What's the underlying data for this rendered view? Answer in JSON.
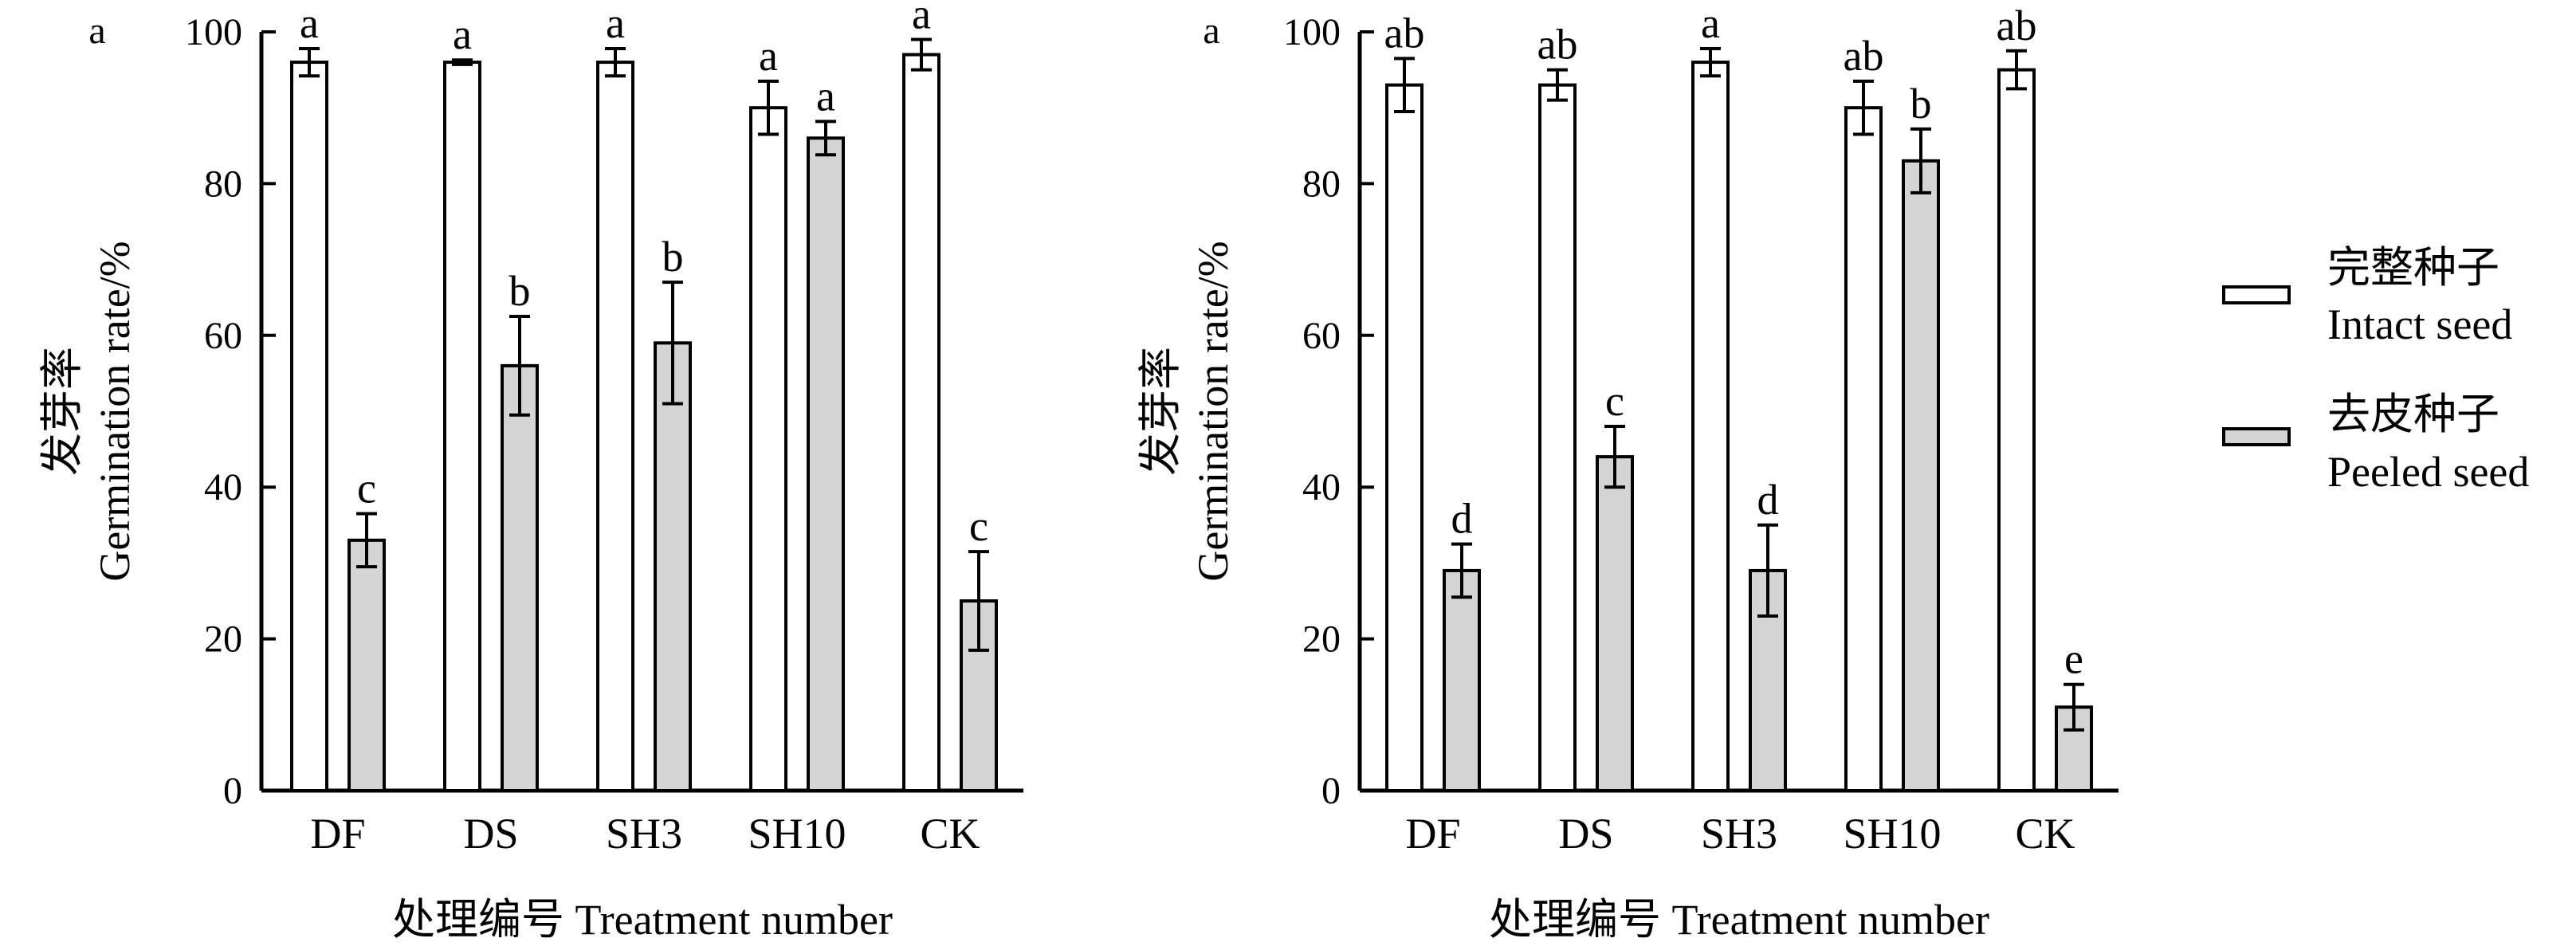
{
  "colors": {
    "intact": "#ffffff",
    "peeled": "#d4d4d4",
    "stroke": "#000000"
  },
  "legend": [
    {
      "key": "intact",
      "label_cn": "完整种子",
      "label_en": "Intact seed"
    },
    {
      "key": "peeled",
      "label_cn": "去皮种子",
      "label_en": "Peeled seed"
    }
  ],
  "chart_data": [
    {
      "type": "bar",
      "panel_label": "a",
      "categories": [
        "DF",
        "DS",
        "SH3",
        "SH10",
        "CK"
      ],
      "xlabel": "处理编号 Treatment number",
      "ylabel_cn": "发芽率",
      "ylabel_en": "Germination rate/%",
      "ylim": [
        0,
        100
      ],
      "yticks": [
        0,
        20,
        40,
        60,
        80,
        100
      ],
      "grid": false,
      "series": [
        {
          "name": "完整种子 Intact seed",
          "key": "intact",
          "values": [
            96,
            96,
            96,
            90,
            97
          ],
          "errors": [
            1.8,
            0.3,
            1.8,
            3.5,
            2.0
          ],
          "letters": [
            "a",
            "a",
            "a",
            "a",
            "a"
          ]
        },
        {
          "name": "去皮种子 Peeled seed",
          "key": "peeled",
          "values": [
            33,
            56,
            59,
            86,
            25
          ],
          "errors": [
            3.5,
            6.5,
            8.0,
            2.2,
            6.5
          ],
          "letters": [
            "c",
            "b",
            "b",
            "a",
            "c"
          ]
        }
      ]
    },
    {
      "type": "bar",
      "panel_label": "a",
      "categories": [
        "DF",
        "DS",
        "SH3",
        "SH10",
        "CK"
      ],
      "xlabel": "处理编号 Treatment number",
      "ylabel_cn": "发芽率",
      "ylabel_en": "Germination rate/%",
      "ylim": [
        0,
        100
      ],
      "yticks": [
        0,
        20,
        40,
        60,
        80,
        100
      ],
      "grid": false,
      "series": [
        {
          "name": "完整种子 Intact seed",
          "key": "intact",
          "values": [
            93,
            93,
            96,
            90,
            95
          ],
          "errors": [
            3.5,
            2.0,
            1.8,
            3.5,
            2.5
          ],
          "letters": [
            "ab",
            "ab",
            "a",
            "ab",
            "ab"
          ]
        },
        {
          "name": "去皮种子 Peeled seed",
          "key": "peeled",
          "values": [
            29,
            44,
            29,
            83,
            11
          ],
          "errors": [
            3.5,
            4.0,
            6.0,
            4.2,
            3.0
          ],
          "letters": [
            "d",
            "c",
            "d",
            "b",
            "e"
          ]
        }
      ]
    }
  ]
}
